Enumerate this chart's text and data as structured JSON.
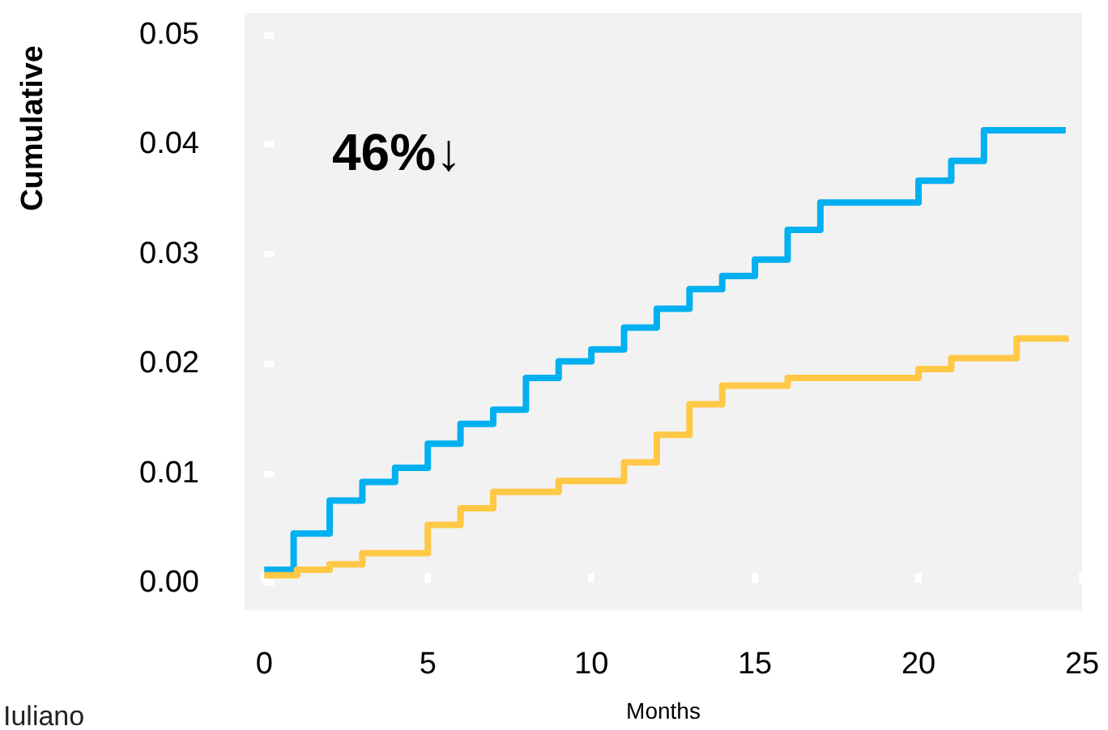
{
  "chart_data": {
    "type": "step",
    "ylabel": "Cumulative",
    "xlabel": "Months",
    "annotations": [
      "46%↓",
      "Iuliano"
    ],
    "xlim": [
      -0.6,
      25
    ],
    "xticks": [
      0,
      5,
      10,
      15,
      20,
      25
    ],
    "ylim": [
      -0.0025,
      0.052
    ],
    "yticks": [
      {
        "value": 0,
        "label": "0.00"
      },
      {
        "value": 0.01,
        "label": "0.01"
      },
      {
        "value": 0.02,
        "label": "0.02"
      },
      {
        "value": 0.03,
        "label": "0.03"
      },
      {
        "value": 0.04,
        "label": "0.04"
      },
      {
        "value": 0.05,
        "label": "0.05"
      }
    ],
    "grid": false,
    "series": [
      {
        "color": "#00b0f0",
        "x": [
          0,
          0.9,
          2,
          3,
          4,
          5,
          6,
          7,
          8,
          9,
          10,
          11,
          12,
          13,
          14,
          15,
          16,
          17,
          20,
          21,
          22,
          24.5
        ],
        "values": [
          0.0012,
          0.0045,
          0.0075,
          0.0092,
          0.0105,
          0.0127,
          0.0145,
          0.0158,
          0.0187,
          0.0202,
          0.0213,
          0.0233,
          0.025,
          0.0268,
          0.028,
          0.0295,
          0.0322,
          0.0347,
          0.0367,
          0.0385,
          0.0413,
          0.0412
        ]
      },
      {
        "color": "#ffc845",
        "x": [
          0,
          1,
          2,
          3,
          5,
          6,
          7,
          9,
          11,
          12,
          13,
          14,
          16,
          20,
          21,
          23,
          24.5
        ],
        "values": [
          0.0007,
          0.0012,
          0.0017,
          0.0027,
          0.0053,
          0.0068,
          0.0083,
          0.0093,
          0.011,
          0.0135,
          0.0163,
          0.018,
          0.0187,
          0.0195,
          0.0205,
          0.0223,
          0.022
        ]
      }
    ]
  }
}
